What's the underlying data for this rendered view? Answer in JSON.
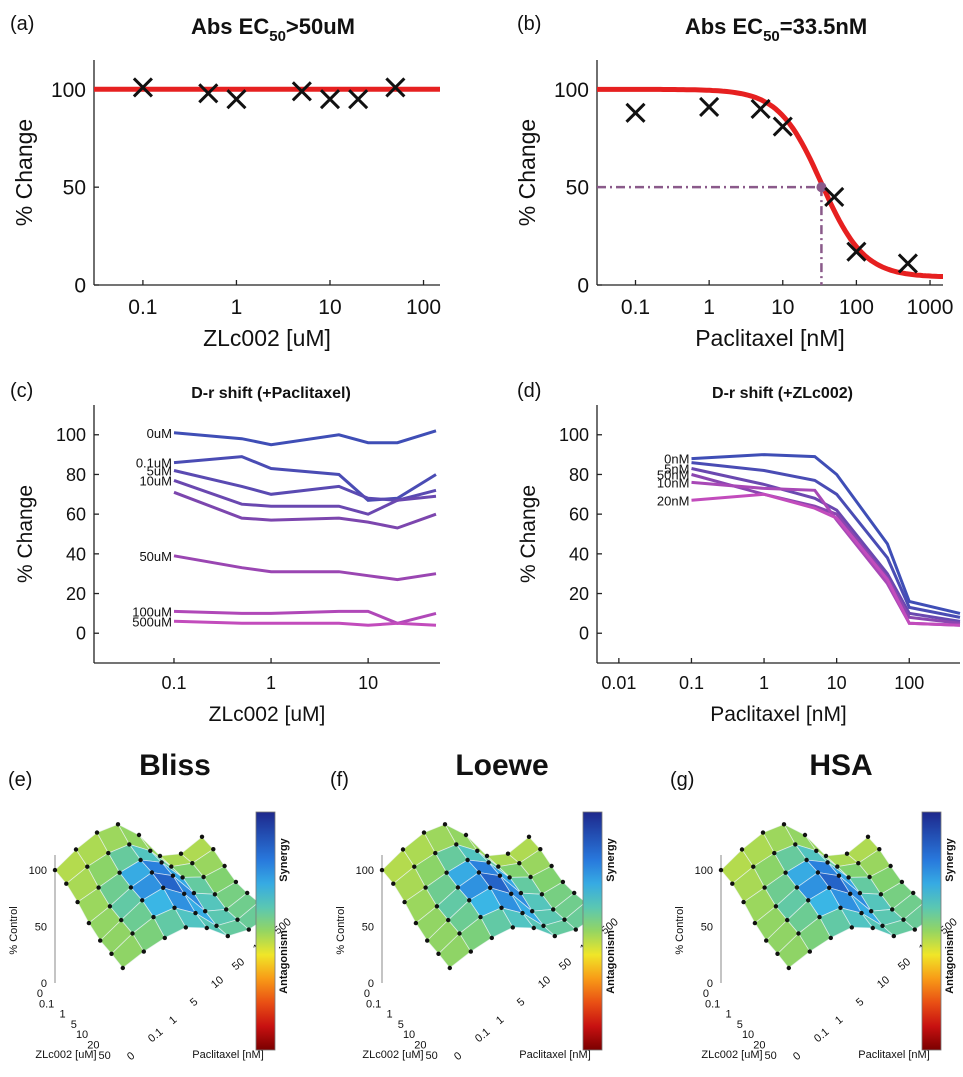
{
  "panel_labels": [
    "(a)",
    "(b)",
    "(c)",
    "(d)",
    "(e)",
    "(f)",
    "(g)"
  ],
  "chart_data": [
    {
      "id": "a",
      "type": "scatter",
      "title_main": "Abs EC",
      "title_sub": "50",
      "title_rest": ">50uM",
      "xlabel": "ZLc002 [uM]",
      "ylabel": "% Change",
      "xscale": "log",
      "xlim": [
        0.03,
        150
      ],
      "ylim": [
        0,
        115
      ],
      "xticks": [
        0.1,
        1,
        10,
        100
      ],
      "xtick_labels": [
        "0.1",
        "1",
        "10",
        "100"
      ],
      "yticks": [
        0,
        50,
        100
      ],
      "ytick_labels": [
        "0",
        "50",
        "100"
      ],
      "fit_color": "#e62020",
      "fit": {
        "top": 100,
        "bottom": 100,
        "ec50": null,
        "hill": 0
      },
      "points": [
        {
          "x": 0.1,
          "y": 101
        },
        {
          "x": 0.5,
          "y": 98
        },
        {
          "x": 1,
          "y": 95
        },
        {
          "x": 5,
          "y": 99
        },
        {
          "x": 10,
          "y": 95
        },
        {
          "x": 20,
          "y": 95
        },
        {
          "x": 50,
          "y": 101
        }
      ]
    },
    {
      "id": "b",
      "type": "scatter",
      "title_main": "Abs EC",
      "title_sub": "50",
      "title_rest": "=33.5nM",
      "xlabel": "Paclitaxel [nM]",
      "ylabel": "% Change",
      "xscale": "log",
      "xlim": [
        0.03,
        1500
      ],
      "ylim": [
        0,
        115
      ],
      "xticks": [
        0.1,
        1,
        10,
        100,
        1000
      ],
      "xtick_labels": [
        "0.1",
        "1",
        "10",
        "100",
        "1000"
      ],
      "yticks": [
        0,
        50,
        100
      ],
      "ytick_labels": [
        "0",
        "50",
        "100"
      ],
      "fit_color": "#e62020",
      "fit": {
        "top": 100,
        "bottom": 4,
        "ec50": 33.5,
        "hill": 1.5
      },
      "ec50_marker": {
        "x": 33.5,
        "y": 50,
        "color": "#8a5a8a"
      },
      "points": [
        {
          "x": 0.1,
          "y": 88
        },
        {
          "x": 1,
          "y": 91
        },
        {
          "x": 5,
          "y": 90
        },
        {
          "x": 10,
          "y": 81
        },
        {
          "x": 50,
          "y": 45
        },
        {
          "x": 100,
          "y": 17
        },
        {
          "x": 500,
          "y": 11
        }
      ]
    },
    {
      "id": "c",
      "type": "line",
      "title": "D-r shift (+Paclitaxel)",
      "xlabel": "ZLc002 [uM]",
      "ylabel": "% Change",
      "xscale": "log",
      "xlim": [
        0.015,
        55
      ],
      "ylim": [
        -15,
        115
      ],
      "xticks": [
        0.1,
        1,
        10
      ],
      "xtick_labels": [
        "0.1",
        "1",
        "10"
      ],
      "yticks": [
        0,
        20,
        40,
        60,
        80,
        100
      ],
      "ytick_labels": [
        "0",
        "20",
        "40",
        "60",
        "80",
        "100"
      ],
      "x": [
        0.1,
        0.5,
        1,
        5,
        10,
        20,
        50
      ],
      "series": [
        {
          "name": "0uM",
          "color": "#3f4eb6",
          "values": [
            101,
            98,
            95,
            100,
            96,
            96,
            102
          ]
        },
        {
          "name": "0.1uM",
          "color": "#4a4cb4",
          "values": [
            86,
            89,
            83,
            80,
            67,
            68,
            80
          ]
        },
        {
          "name": "5uM",
          "color": "#5a4ab2",
          "values": [
            82,
            74,
            70,
            74,
            68,
            67,
            72
          ]
        },
        {
          "name": "10uM",
          "color": "#6a48b0",
          "values": [
            77,
            65,
            64,
            64,
            60,
            67,
            69
          ]
        },
        {
          "name": "",
          "color": "#7c46ae",
          "values": [
            71,
            58,
            57,
            58,
            56,
            53,
            60
          ]
        },
        {
          "name": "50uM",
          "color": "#9a46b2",
          "values": [
            39,
            33,
            31,
            31,
            29,
            27,
            30
          ]
        },
        {
          "name": "100uM",
          "color": "#b048b8",
          "values": [
            11,
            10,
            10,
            11,
            11,
            5,
            10
          ]
        },
        {
          "name": "500uM",
          "color": "#c24cbc",
          "values": [
            6,
            5,
            5,
            5,
            4,
            5,
            4
          ]
        }
      ]
    },
    {
      "id": "d",
      "type": "line",
      "title": "D-r shift (+ZLc002)",
      "xlabel": "Paclitaxel [nM]",
      "ylabel": "% Change",
      "xscale": "log",
      "xlim": [
        0.005,
        500
      ],
      "ylim": [
        -15,
        115
      ],
      "xticks": [
        0.01,
        0.1,
        1,
        10,
        100
      ],
      "xtick_labels": [
        "0.01",
        "0.1",
        "1",
        "10",
        "100"
      ],
      "yticks": [
        0,
        20,
        40,
        60,
        80,
        100
      ],
      "ytick_labels": [
        "0",
        "20",
        "40",
        "60",
        "80",
        "100"
      ],
      "x": [
        0.1,
        1,
        5,
        10,
        50,
        100,
        500
      ],
      "series": [
        {
          "name": "0nM",
          "color": "#3f4eb6",
          "values": [
            88,
            90,
            89,
            80,
            45,
            16,
            10
          ]
        },
        {
          "name": "",
          "color": "#4a4cb4",
          "values": [
            86,
            82,
            77,
            70,
            38,
            13,
            8
          ]
        },
        {
          "name": "5nM",
          "color": "#6a48b0",
          "values": [
            83,
            75,
            68,
            62,
            30,
            10,
            6
          ]
        },
        {
          "name": "50nM",
          "color": "#8a46b0",
          "values": [
            80,
            70,
            64,
            60,
            28,
            8,
            5
          ]
        },
        {
          "name": "10nM",
          "color": "#a848b6",
          "values": [
            76,
            73,
            72,
            57,
            25,
            5,
            4
          ]
        },
        {
          "name": "20nM",
          "color": "#c24cbc",
          "values": [
            67,
            70,
            63,
            58,
            27,
            5,
            4
          ]
        }
      ]
    },
    {
      "id": "e",
      "type": "heatmap",
      "title": "Bliss",
      "zlabel": "% Control",
      "xlabel": "ZLc002 [uM]",
      "ylabel": "Paclitaxel [nM]",
      "xticks": [
        "0",
        "0.1",
        "1",
        "5",
        "10",
        "20",
        "50"
      ],
      "yticks": [
        "0",
        "0.1",
        "1",
        "5",
        "10",
        "50",
        "100",
        "500"
      ],
      "zticks": [
        "0",
        "50",
        "100"
      ],
      "colorbar_labels": [
        "Synergy",
        "Antagonism"
      ]
    },
    {
      "id": "f",
      "type": "heatmap",
      "title": "Loewe",
      "zlabel": "% Control",
      "xlabel": "ZLc002 [uM]",
      "ylabel": "Paclitaxel [nM]",
      "xticks": [
        "0",
        "0.1",
        "1",
        "5",
        "10",
        "20",
        "50"
      ],
      "yticks": [
        "0",
        "0.1",
        "1",
        "5",
        "10",
        "50",
        "100",
        "500"
      ],
      "zticks": [
        "0",
        "50",
        "100"
      ],
      "colorbar_labels": [
        "Synergy",
        "Antagonism"
      ]
    },
    {
      "id": "g",
      "type": "heatmap",
      "title": "HSA",
      "zlabel": "% Control",
      "xlabel": "ZLc002 [uM]",
      "ylabel": "Paclitaxel [nM]",
      "xticks": [
        "0",
        "0.1",
        "1",
        "5",
        "10",
        "20",
        "50"
      ],
      "yticks": [
        "0",
        "0.1",
        "1",
        "5",
        "10",
        "50",
        "100",
        "500"
      ],
      "zticks": [
        "0",
        "50",
        "100"
      ],
      "colorbar_labels": [
        "Synergy",
        "Antagonism"
      ]
    }
  ]
}
